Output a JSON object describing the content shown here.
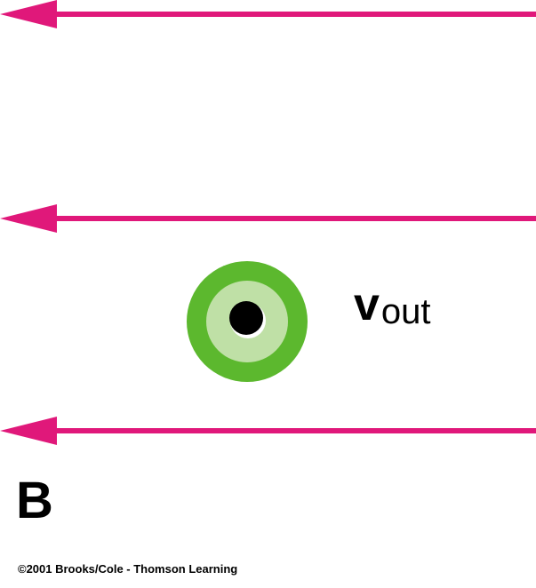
{
  "diagram": {
    "field_symbol": "B",
    "velocity_symbol": "v",
    "velocity_subscript": "out",
    "credit": "©2001 Brooks/Cole - Thomson Learning"
  },
  "colors": {
    "field_lines": "#e0187a",
    "particle_outer": "#5cb82e",
    "particle_inner": "#bfe0a6",
    "particle_core": "#000000"
  },
  "icons": {
    "field_arrow": "arrow-left",
    "particle": "dot-out-of-page"
  }
}
